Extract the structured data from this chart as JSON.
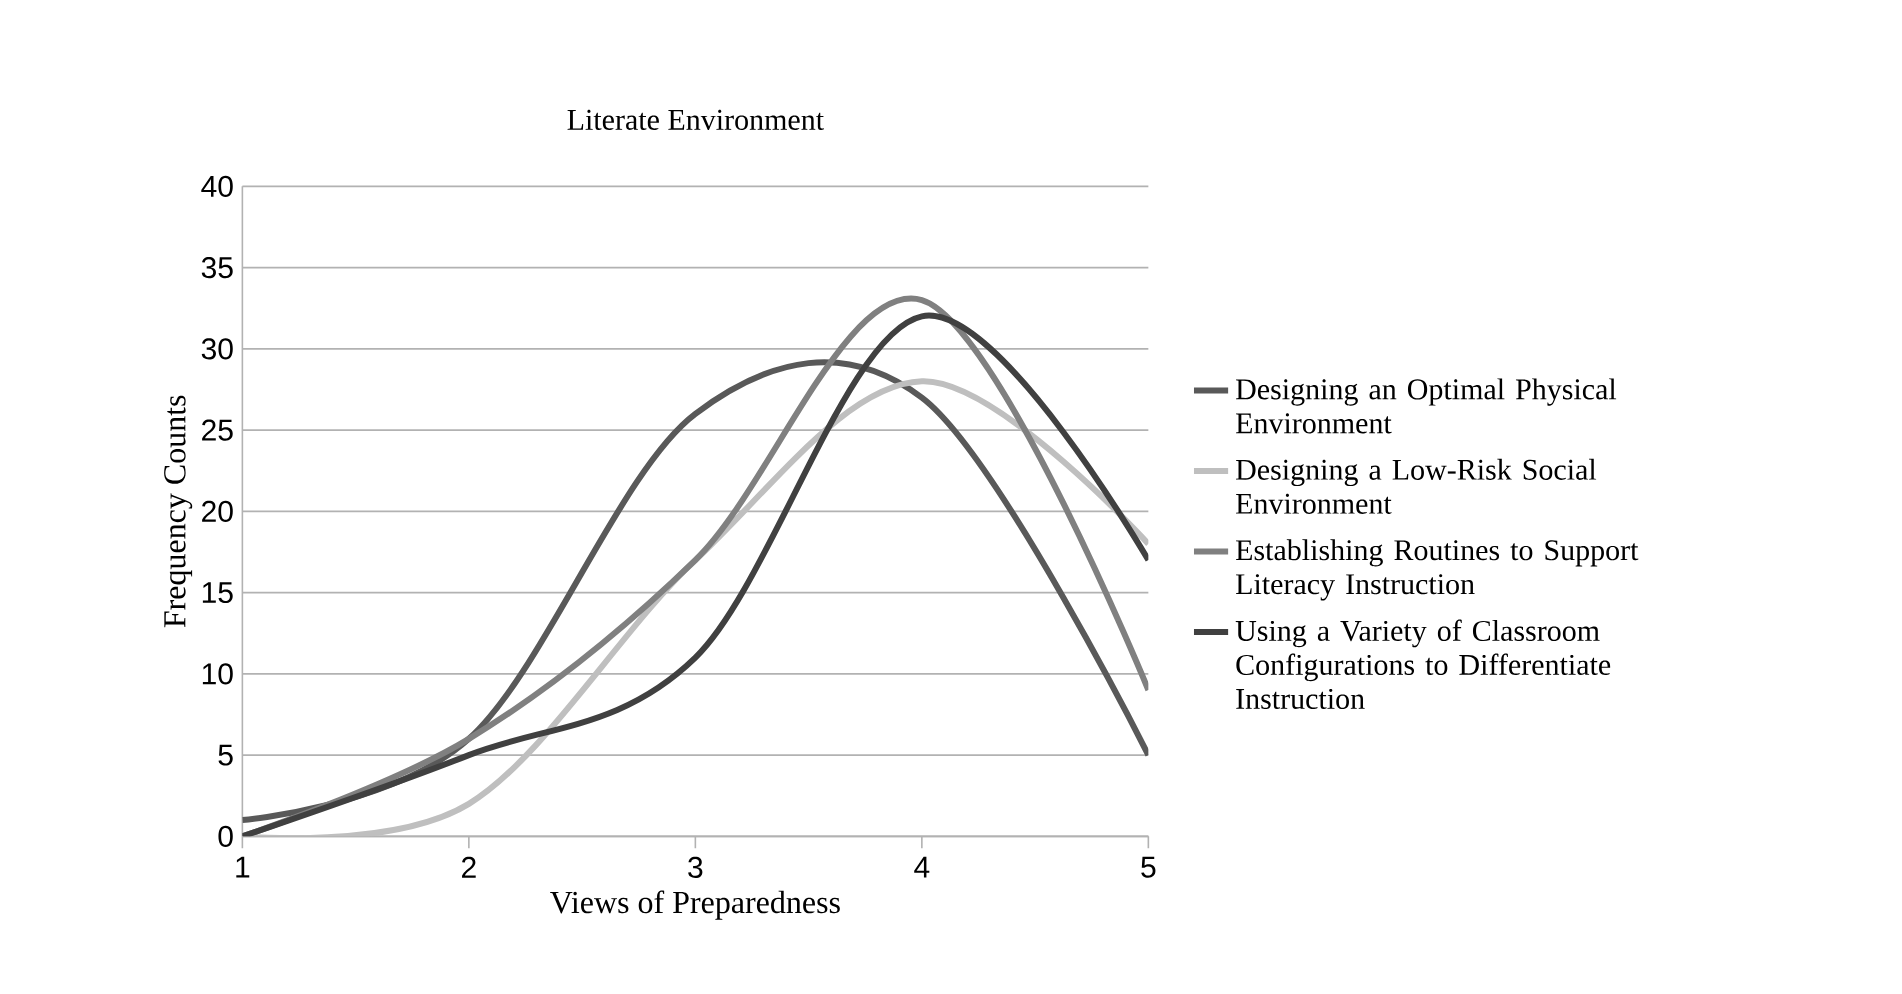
{
  "chart_data": {
    "type": "line",
    "title": "Literate Environment",
    "xlabel": "Views of Preparedness",
    "ylabel": "Frequency Counts",
    "x": [
      1,
      2,
      3,
      4,
      5
    ],
    "series": [
      {
        "name": "Designing an Optimal Physical Environment",
        "color": "#595959",
        "values": [
          1,
          6,
          26,
          27,
          5
        ]
      },
      {
        "name": "Designing a Low-Risk Social Environment",
        "color": "#bfbfbf",
        "values": [
          0,
          2,
          17,
          28,
          18
        ]
      },
      {
        "name": "Establishing Routines to Support Literacy Instruction",
        "color": "#808080",
        "values": [
          0,
          6,
          17,
          33,
          9
        ]
      },
      {
        "name": "Using a Variety of Classroom Configurations to Differentiate Instruction",
        "color": "#404040",
        "values": [
          0,
          5,
          11,
          32,
          17
        ]
      }
    ],
    "xlim": [
      1,
      5
    ],
    "ylim": [
      0,
      40
    ],
    "xticks": [
      1,
      2,
      3,
      4,
      5
    ],
    "yticks": [
      0,
      5,
      10,
      15,
      20,
      25,
      30,
      35,
      40
    ],
    "grid": "y",
    "legend": "right",
    "marker": "none",
    "line_style": "solid"
  }
}
